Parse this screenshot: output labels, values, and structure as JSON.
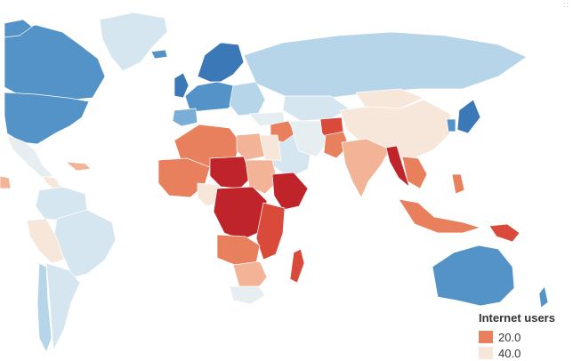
{
  "colors": {
    "c_dark_red": "#c0242b",
    "c_red": "#d94a3b",
    "c_orange": "#e8805e",
    "c_salmon": "#f2b396",
    "c_cream": "#f6e7da",
    "c_pale_gray": "#e7eef1",
    "c_pale_blue": "#d6e6f0",
    "c_light_blue": "#b7d5e8",
    "c_mid_blue": "#7aaed6",
    "c_blue": "#5393c8",
    "c_dark_blue": "#3b78b8",
    "ocean": "#ffffff"
  },
  "legend": {
    "title": "Internet users",
    "items": [
      {
        "label": "20.0",
        "color": "#e8805e"
      },
      {
        "label": "40.0",
        "color": "#f6e7da"
      }
    ]
  },
  "regions": [
    {
      "name": "greenland",
      "color": "c_pale_blue"
    },
    {
      "name": "canada",
      "color": "c_blue"
    },
    {
      "name": "alaska",
      "color": "c_blue"
    },
    {
      "name": "usa",
      "color": "c_blue"
    },
    {
      "name": "mexico",
      "color": "c_pale_gray"
    },
    {
      "name": "central-america",
      "color": "c_cream"
    },
    {
      "name": "caribbean",
      "color": "c_salmon"
    },
    {
      "name": "colombia-venezuela",
      "color": "c_pale_blue"
    },
    {
      "name": "brazil",
      "color": "c_pale_blue"
    },
    {
      "name": "peru-bolivia",
      "color": "c_cream"
    },
    {
      "name": "chile",
      "color": "c_light_blue"
    },
    {
      "name": "argentina",
      "color": "c_pale_blue"
    },
    {
      "name": "iceland",
      "color": "c_blue"
    },
    {
      "name": "scandinavia",
      "color": "c_dark_blue"
    },
    {
      "name": "uk-ireland",
      "color": "c_dark_blue"
    },
    {
      "name": "western-europe",
      "color": "c_blue"
    },
    {
      "name": "iberia",
      "color": "c_mid_blue"
    },
    {
      "name": "eastern-europe",
      "color": "c_light_blue"
    },
    {
      "name": "russia",
      "color": "c_light_blue"
    },
    {
      "name": "kazakhstan",
      "color": "c_pale_blue"
    },
    {
      "name": "mongolia",
      "color": "c_cream"
    },
    {
      "name": "china",
      "color": "c_cream"
    },
    {
      "name": "japan",
      "color": "c_dark_blue"
    },
    {
      "name": "korea",
      "color": "c_blue"
    },
    {
      "name": "turkey",
      "color": "c_pale_gray"
    },
    {
      "name": "middle-east",
      "color": "c_pale_blue"
    },
    {
      "name": "iraq-syria",
      "color": "c_orange"
    },
    {
      "name": "iran",
      "color": "c_pale_gray"
    },
    {
      "name": "afghanistan",
      "color": "c_red"
    },
    {
      "name": "pakistan",
      "color": "c_orange"
    },
    {
      "name": "india",
      "color": "c_salmon"
    },
    {
      "name": "myanmar",
      "color": "c_dark_red"
    },
    {
      "name": "se-asia-mainland",
      "color": "c_orange"
    },
    {
      "name": "north-africa-west",
      "color": "c_orange"
    },
    {
      "name": "libya",
      "color": "c_salmon"
    },
    {
      "name": "egypt",
      "color": "c_cream"
    },
    {
      "name": "west-africa",
      "color": "c_orange"
    },
    {
      "name": "sahel-niger-chad",
      "color": "c_dark_red"
    },
    {
      "name": "sudan",
      "color": "c_salmon"
    },
    {
      "name": "ethiopia-somalia",
      "color": "c_dark_red"
    },
    {
      "name": "nigeria",
      "color": "c_cream"
    },
    {
      "name": "central-africa",
      "color": "c_dark_red"
    },
    {
      "name": "east-africa",
      "color": "c_red"
    },
    {
      "name": "angola-zambia",
      "color": "c_orange"
    },
    {
      "name": "southern-africa",
      "color": "c_salmon"
    },
    {
      "name": "south-africa",
      "color": "c_pale_gray"
    },
    {
      "name": "madagascar",
      "color": "c_red"
    },
    {
      "name": "indonesia",
      "color": "c_orange"
    },
    {
      "name": "philippines",
      "color": "c_orange"
    },
    {
      "name": "new-guinea",
      "color": "c_red"
    },
    {
      "name": "australia",
      "color": "c_blue"
    },
    {
      "name": "new-zealand",
      "color": "c_blue"
    }
  ]
}
